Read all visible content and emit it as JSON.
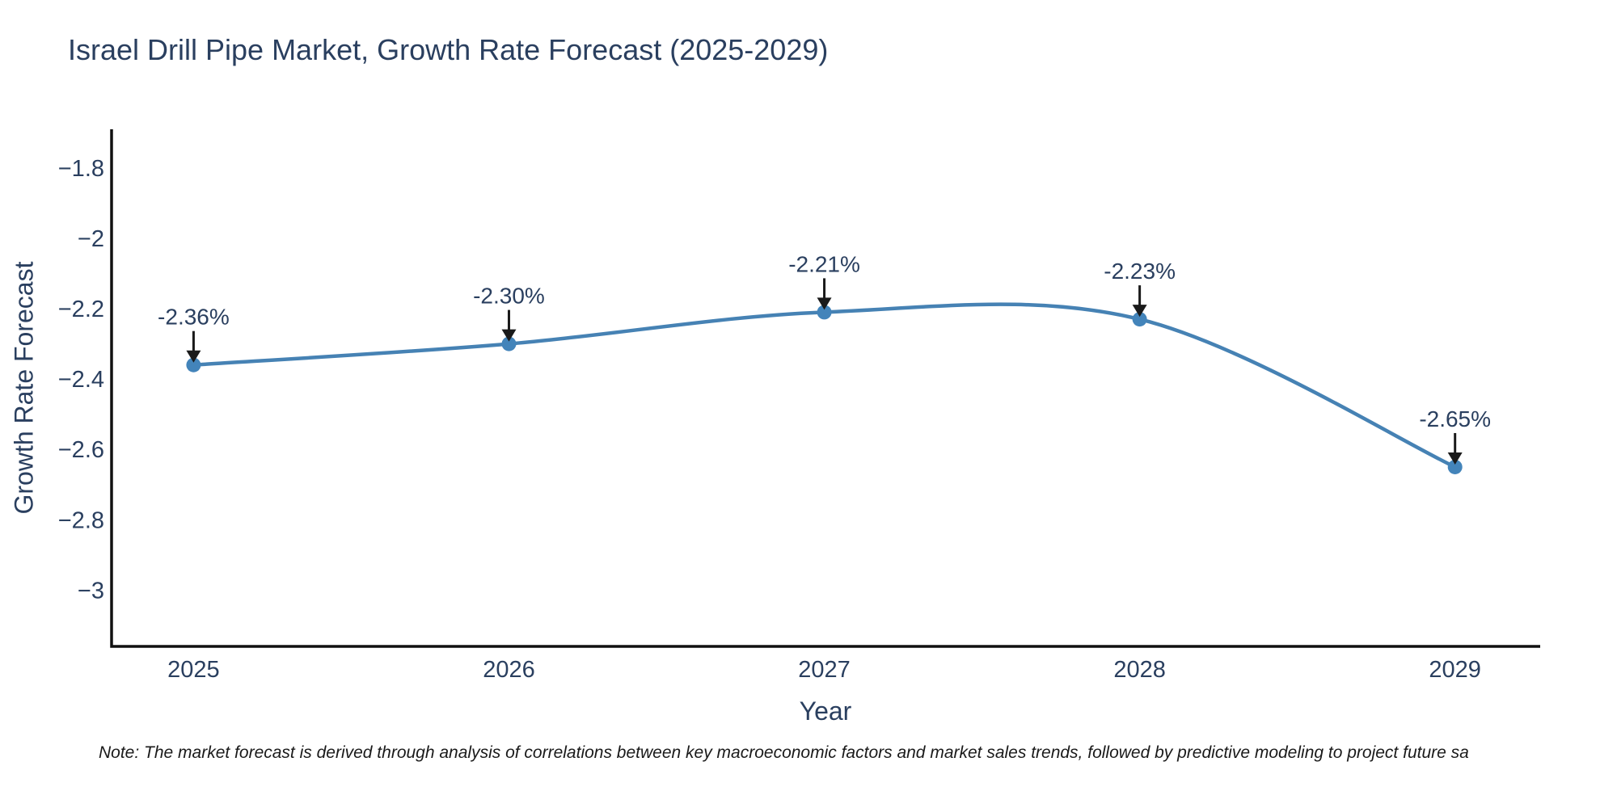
{
  "note": {
    "text": "Note: The market forecast is derived through analysis of correlations between key macroeconomic factors and market sales trends, followed by predictive modeling to project future sa"
  },
  "chart_data": {
    "type": "line",
    "title": "Israel Drill Pipe Market, Growth Rate Forecast (2025-2029)",
    "xlabel": "Year",
    "ylabel": "Growth Rate Forecast",
    "x": [
      2025,
      2026,
      2027,
      2028,
      2029
    ],
    "y": [
      -2.36,
      -2.3,
      -2.21,
      -2.23,
      -2.65
    ],
    "point_labels": [
      "-2.36%",
      "-2.30%",
      "-2.21%",
      "-2.23%",
      "-2.65%"
    ],
    "xticks": [
      2025,
      2026,
      2027,
      2028,
      2029
    ],
    "xtick_labels": [
      "2025",
      "2026",
      "2027",
      "2028",
      "2029"
    ],
    "yticks": [
      -1.8,
      -2,
      -2.2,
      -2.4,
      -2.6,
      -2.8,
      -3
    ],
    "ytick_labels": [
      "−1.8",
      "−2",
      "−2.2",
      "−2.4",
      "−2.6",
      "−2.8",
      "−3"
    ],
    "xlim": [
      2024.74,
      2029.27
    ],
    "ylim": [
      -3.16,
      -1.69
    ],
    "grid": false,
    "legend": false,
    "line_shape": "spline",
    "line_color": "#4682b4",
    "marker_color": "#4384ba",
    "axis_color": "#101010",
    "text_color": "#2a3f5f",
    "annotation_text_color": "#2a3f5f",
    "arrow_color": "#1a1a1a"
  }
}
